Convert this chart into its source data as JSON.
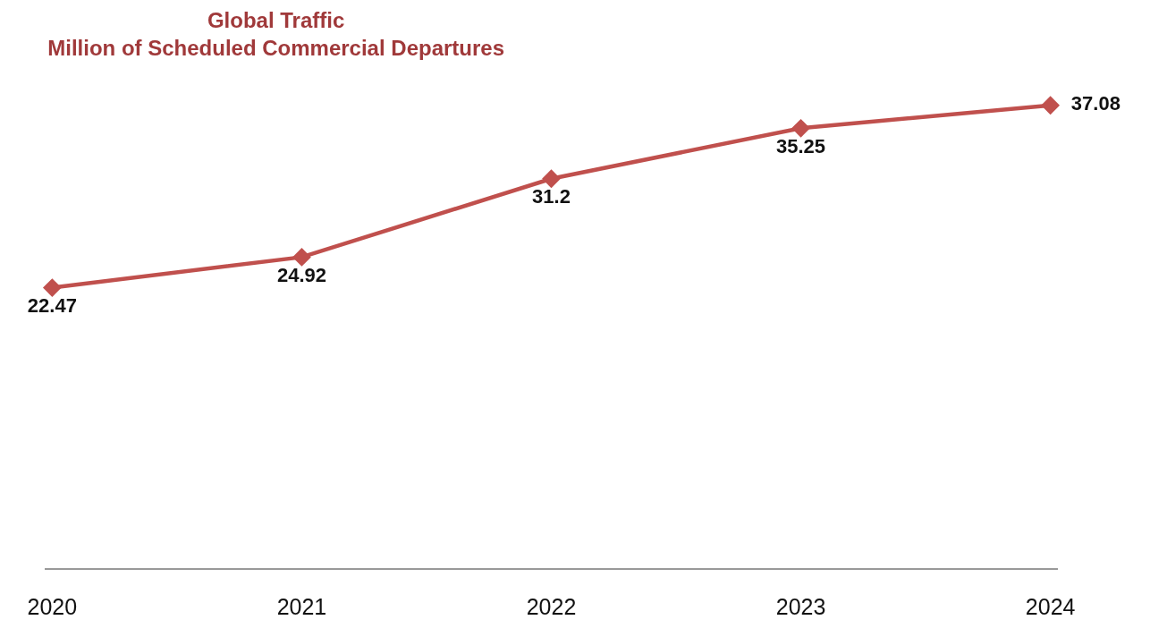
{
  "chart_data": {
    "type": "line",
    "title": "Global Traffic\nMillion of Scheduled Commercial Departures",
    "categories": [
      "2020",
      "2021",
      "2022",
      "2023",
      "2024"
    ],
    "series": [
      {
        "color": "#c0504d",
        "values": [
          22.47,
          24.92,
          31.2,
          35.25,
          37.08
        ]
      }
    ],
    "data_labels": true,
    "marker": "diamond",
    "line_style": "solid",
    "grid": false,
    "legend": false,
    "tick_labels": "x"
  }
}
